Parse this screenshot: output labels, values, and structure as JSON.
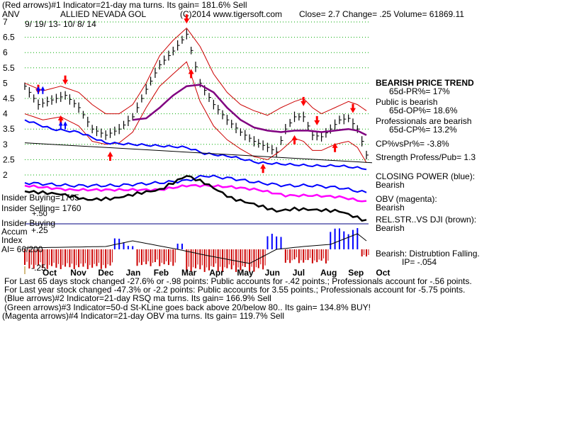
{
  "header": {
    "line1": "(Red arrows)#1 Indicator=21-day ma turns. Its gain= 181.6% Sell",
    "ticker": "ANV",
    "company": "ALLIED NEVADA GOL",
    "copyright": "(C)2014 www.tigersoft.com",
    "quote": "Close=  2.7  Change= .25 Volume= 61869.11",
    "date_range": "9/ 19/ 13- 10/ 8/ 14"
  },
  "panel_labels": {
    "insider_buying_count": "Insider Buying=1765",
    "insider_selling_count": "Insider Selling= 1760",
    "insider_buying": "Insider Buying",
    "accum": "Accum",
    "index": "Index",
    "ai": "AI= 66/200",
    "accum_top": "+.25",
    "accum_mid": "+.50",
    "accum_bottom": "-.25"
  },
  "right_panel": {
    "trend_title": "BEARISH PRICE TREND",
    "pr": "65d-PR%= 17%",
    "public_title": "Public is bearish",
    "op": "65d-OP%= 18.6%",
    "pro_title": "Professionals are bearish",
    "cp": "65d-CP%= 13.2%",
    "cpvspr": "CP%vsPr%= -3.8%",
    "strength": "Strength Profess/Pub= 1.3",
    "closing_power": "CLOSING POWER (blue):",
    "closing_power_val": "Bearish",
    "obv": "OBV (magenta):",
    "obv_val": "Bearish",
    "relstr": "REL.STR..VS DJI (brown):",
    "relstr_val": "Bearish",
    "distribution": "Bearish: Distrubtion Falling.",
    "ip": "IP= -.054"
  },
  "footer": {
    "line1": "For Last 65 days stock changed -27.6% or -.98 points:  Public accounts for -.42 points.;  Professionals account for -.56 points.",
    "line2": "For Last year stock changed -47.3% or -2.2 points:  Public accounts for  3.55 points.;  Professionals account for -5.75 points.",
    "line3": "(Blue arrows)#2 Indicator=21-day RSQ ma turns. Its gain= 166.9% Sell",
    "line4": "(Green arrows)#3 Indicator=50-d St-KLine goes back above 20/below 80.. Its gain= 134.8% BUY!",
    "line5": "(Magenta arrows)#4 Indicator=21-day OBV ma turns. Its gain= 119.7% Sell"
  },
  "colors": {
    "price": "#000000",
    "band": "#cc0000",
    "ma": "#800080",
    "closing_power": "#0000ff",
    "obv": "#ff00ff",
    "relstr": "#000000",
    "accum_pos": "#0000ff",
    "accum_neg": "#cc0000",
    "grid": "#00aa00",
    "insider_line": "#000080"
  },
  "chart_data": {
    "type": "line",
    "ylim": [
      2,
      7
    ],
    "yticks": [
      "7",
      "6.5",
      "6",
      "5.5",
      "5",
      "4.5",
      "4",
      "3.5",
      "3",
      "2.5",
      "2"
    ],
    "months": [
      "Oct",
      "Nov",
      "Dec",
      "Jan",
      "Feb",
      "Mar",
      "Apr",
      "May",
      "Jun",
      "Jul",
      "Aug",
      "Sep",
      "Oct"
    ],
    "close_anchors": [
      [
        0,
        4.9
      ],
      [
        3,
        4.3
      ],
      [
        6,
        4.45
      ],
      [
        9,
        4.6
      ],
      [
        12,
        4.2
      ],
      [
        15,
        3.5
      ],
      [
        18,
        3.3
      ],
      [
        21,
        3.5
      ],
      [
        24,
        3.9
      ],
      [
        27,
        4.8
      ],
      [
        30,
        5.6
      ],
      [
        33,
        6.05
      ],
      [
        36,
        6.6
      ],
      [
        39,
        5.0
      ],
      [
        42,
        4.3
      ],
      [
        45,
        3.8
      ],
      [
        48,
        3.4
      ],
      [
        51,
        3.1
      ],
      [
        54,
        2.9
      ],
      [
        56,
        2.75
      ],
      [
        58,
        3.5
      ],
      [
        60,
        3.9
      ],
      [
        62,
        3.9
      ],
      [
        64,
        3.3
      ],
      [
        66,
        3.25
      ],
      [
        68,
        3.5
      ],
      [
        70,
        3.8
      ],
      [
        72,
        3.85
      ],
      [
        74,
        3.5
      ],
      [
        75,
        3.1
      ],
      [
        76,
        2.65
      ]
    ],
    "ma_anchors": [
      [
        24,
        3.8
      ],
      [
        27,
        3.85
      ],
      [
        30,
        4.2
      ],
      [
        33,
        4.6
      ],
      [
        36,
        4.9
      ],
      [
        39,
        4.95
      ],
      [
        42,
        4.7
      ],
      [
        45,
        4.2
      ],
      [
        48,
        3.8
      ],
      [
        51,
        3.55
      ],
      [
        54,
        3.45
      ],
      [
        57,
        3.4
      ],
      [
        60,
        3.45
      ],
      [
        63,
        3.45
      ],
      [
        66,
        3.4
      ],
      [
        69,
        3.45
      ],
      [
        72,
        3.5
      ],
      [
        74,
        3.45
      ],
      [
        76,
        3.3
      ]
    ],
    "band_up_anchors": [
      [
        0,
        5.0
      ],
      [
        4,
        4.75
      ],
      [
        8,
        4.9
      ],
      [
        12,
        4.7
      ],
      [
        15,
        4.3
      ],
      [
        18,
        4.0
      ],
      [
        21,
        4.0
      ],
      [
        24,
        4.3
      ],
      [
        27,
        5.0
      ],
      [
        30,
        5.9
      ],
      [
        33,
        6.4
      ],
      [
        36,
        6.8
      ],
      [
        39,
        6.2
      ],
      [
        42,
        5.3
      ],
      [
        45,
        4.7
      ],
      [
        48,
        4.3
      ],
      [
        51,
        4.1
      ],
      [
        54,
        3.95
      ],
      [
        57,
        4.2
      ],
      [
        60,
        4.4
      ],
      [
        62,
        4.5
      ],
      [
        64,
        4.2
      ],
      [
        66,
        4.0
      ],
      [
        69,
        4.2
      ],
      [
        72,
        4.4
      ],
      [
        74,
        4.3
      ],
      [
        76,
        4.1
      ]
    ],
    "band_low_anchors": [
      [
        0,
        4.0
      ],
      [
        4,
        3.8
      ],
      [
        8,
        3.9
      ],
      [
        12,
        3.6
      ],
      [
        15,
        3.1
      ],
      [
        18,
        3.0
      ],
      [
        21,
        3.05
      ],
      [
        24,
        3.4
      ],
      [
        27,
        4.2
      ],
      [
        30,
        4.9
      ],
      [
        33,
        5.3
      ],
      [
        36,
        5.7
      ],
      [
        39,
        4.4
      ],
      [
        42,
        3.6
      ],
      [
        45,
        3.15
      ],
      [
        48,
        2.85
      ],
      [
        51,
        2.6
      ],
      [
        54,
        2.5
      ],
      [
        57,
        2.8
      ],
      [
        60,
        3.2
      ],
      [
        62,
        3.1
      ],
      [
        64,
        2.8
      ],
      [
        66,
        2.8
      ],
      [
        69,
        3.0
      ],
      [
        72,
        3.1
      ],
      [
        74,
        2.9
      ],
      [
        76,
        2.4
      ]
    ],
    "cp_anchors": [
      [
        0,
        3.8
      ],
      [
        6,
        3.5
      ],
      [
        12,
        3.4
      ],
      [
        18,
        3.05
      ],
      [
        24,
        3.0
      ],
      [
        30,
        2.95
      ],
      [
        36,
        2.9
      ],
      [
        40,
        2.7
      ],
      [
        46,
        2.6
      ],
      [
        52,
        2.4
      ],
      [
        58,
        2.35
      ],
      [
        64,
        2.3
      ],
      [
        70,
        2.3
      ],
      [
        76,
        2.2
      ]
    ],
    "buy_arrows": [
      8,
      19,
      37,
      53,
      60,
      69
    ],
    "sell_arrows": [
      3,
      9,
      36,
      62,
      65,
      73
    ]
  }
}
